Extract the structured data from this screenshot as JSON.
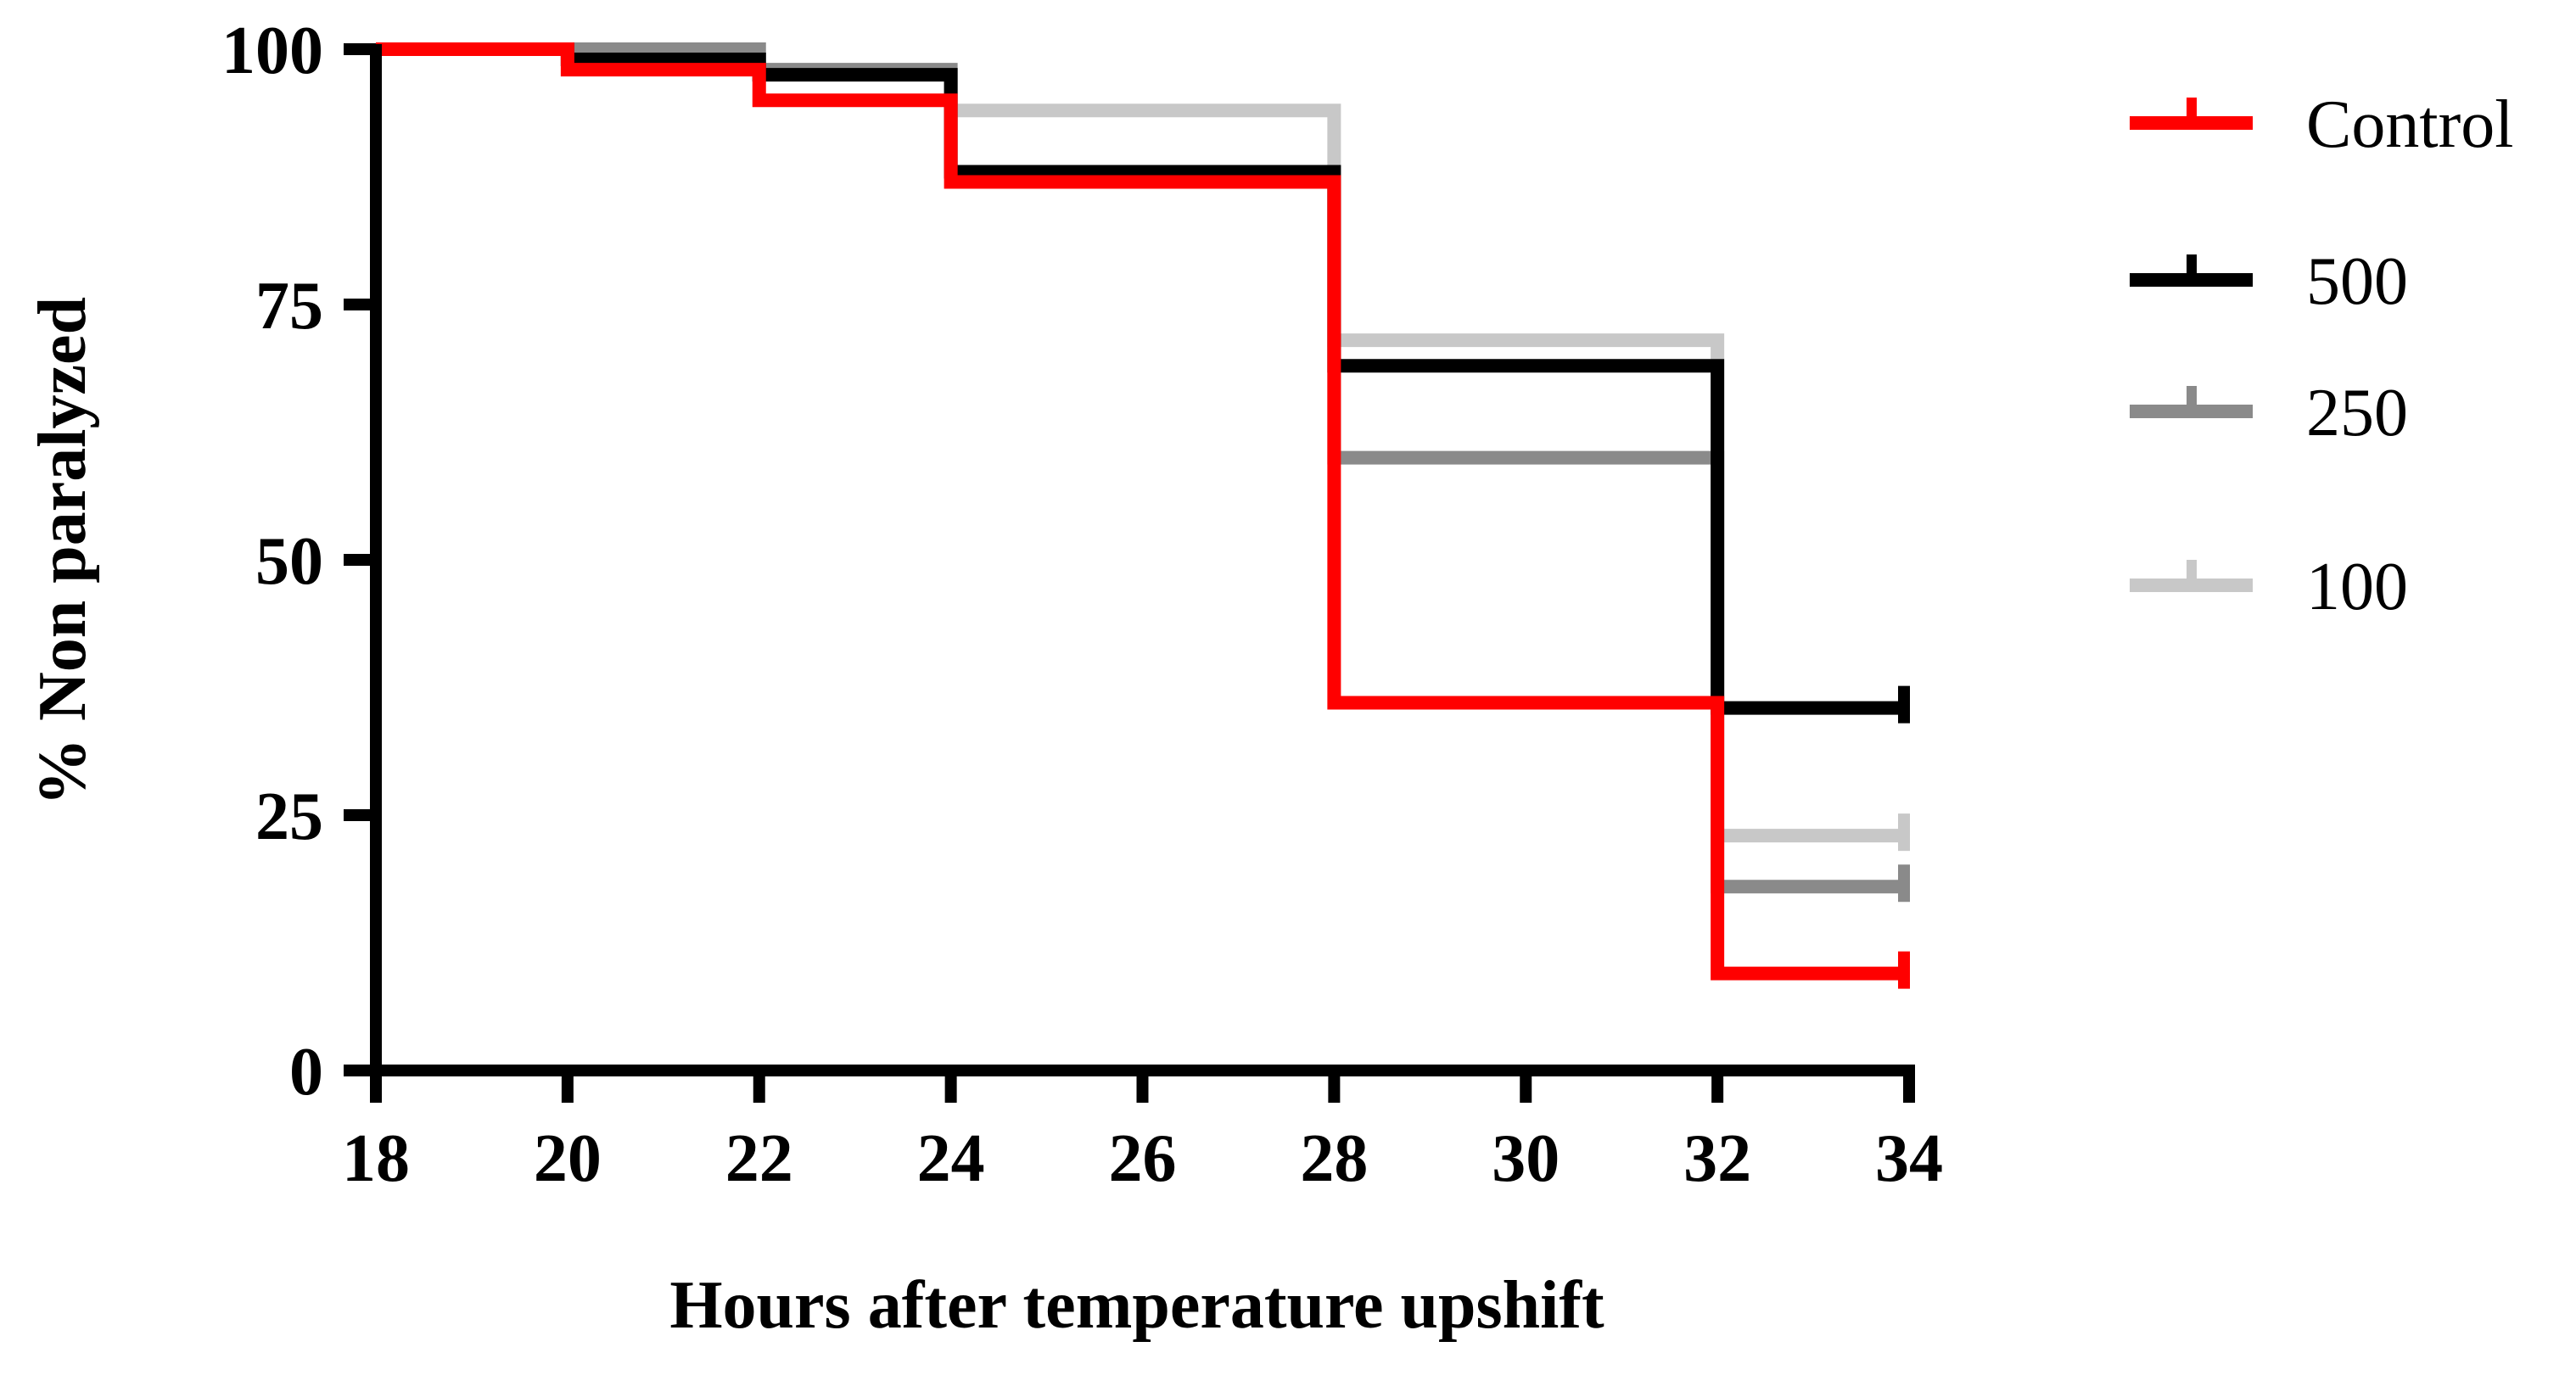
{
  "chart_data": {
    "type": "line",
    "step": true,
    "xlabel": "Hours after temperature upshift",
    "ylabel": "% Non paralyzed",
    "xlim": [
      18,
      34
    ],
    "ylim": [
      0,
      100
    ],
    "xticks": [
      "18",
      "20",
      "22",
      "24",
      "26",
      "28",
      "30",
      "32",
      "34"
    ],
    "yticks": [
      "0",
      "25",
      "50",
      "75",
      "100"
    ],
    "legend_position": "right",
    "series": [
      {
        "name": "100",
        "color": "#c8c8c8",
        "x": [
          18,
          20,
          22,
          24,
          28,
          32,
          34
        ],
        "y": [
          100,
          99,
          97.5,
          94,
          71.5,
          23,
          23
        ]
      },
      {
        "name": "250",
        "color": "#8a8a8a",
        "x": [
          18,
          20,
          22,
          24,
          28,
          32,
          34
        ],
        "y": [
          100,
          100,
          98,
          88,
          60,
          18,
          18
        ]
      },
      {
        "name": "500",
        "color": "#000000",
        "x": [
          18,
          20,
          22,
          24,
          28,
          32,
          34
        ],
        "y": [
          100,
          99,
          97.5,
          88,
          69,
          35.5,
          35.5
        ]
      },
      {
        "name": "Control",
        "color": "#ff0000",
        "x": [
          18,
          20,
          22,
          24,
          28,
          32,
          34
        ],
        "y": [
          100,
          98,
          95,
          87,
          36,
          9.5,
          9.5
        ]
      }
    ],
    "legend_order": [
      "Control",
      "500",
      "250",
      "100"
    ]
  }
}
